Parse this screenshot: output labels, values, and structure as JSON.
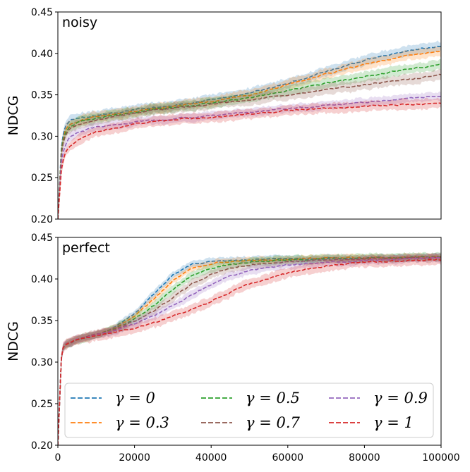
{
  "chart_data": [
    {
      "type": "line",
      "panel_label": "noisy",
      "ylabel": "NDCG",
      "xlim": [
        0,
        100000
      ],
      "ylim": [
        0.2,
        0.45
      ],
      "y_ticks": [
        "0.20",
        "0.25",
        "0.30",
        "0.35",
        "0.40",
        "0.45"
      ],
      "x_tick_labels_shown": false,
      "series": [
        {
          "name": "γ = 0",
          "color": "#1f77b4",
          "band": 0.006,
          "x": [
            0,
            1000,
            2000,
            3000,
            5000,
            10000,
            20000,
            30000,
            40000,
            50000,
            60000,
            70000,
            80000,
            90000,
            100000
          ],
          "y": [
            0.2,
            0.295,
            0.312,
            0.318,
            0.322,
            0.325,
            0.332,
            0.337,
            0.344,
            0.352,
            0.364,
            0.378,
            0.392,
            0.402,
            0.409
          ]
        },
        {
          "name": "γ = 0.3",
          "color": "#ff7f0e",
          "band": 0.006,
          "x": [
            0,
            1000,
            2000,
            3000,
            5000,
            10000,
            20000,
            30000,
            40000,
            50000,
            60000,
            70000,
            80000,
            90000,
            100000
          ],
          "y": [
            0.2,
            0.29,
            0.308,
            0.314,
            0.318,
            0.323,
            0.33,
            0.336,
            0.342,
            0.35,
            0.362,
            0.375,
            0.387,
            0.396,
            0.403
          ]
        },
        {
          "name": "γ = 0.5",
          "color": "#2ca02c",
          "band": 0.006,
          "x": [
            0,
            1000,
            2000,
            3000,
            5000,
            10000,
            20000,
            30000,
            40000,
            50000,
            60000,
            70000,
            80000,
            90000,
            100000
          ],
          "y": [
            0.2,
            0.288,
            0.305,
            0.311,
            0.316,
            0.322,
            0.329,
            0.335,
            0.34,
            0.346,
            0.355,
            0.364,
            0.372,
            0.38,
            0.387
          ]
        },
        {
          "name": "γ = 0.7",
          "color": "#8c564b",
          "band": 0.006,
          "x": [
            0,
            1000,
            2000,
            3000,
            5000,
            10000,
            20000,
            30000,
            40000,
            50000,
            60000,
            70000,
            80000,
            90000,
            100000
          ],
          "y": [
            0.2,
            0.285,
            0.302,
            0.309,
            0.314,
            0.32,
            0.328,
            0.334,
            0.339,
            0.344,
            0.35,
            0.356,
            0.362,
            0.368,
            0.374
          ]
        },
        {
          "name": "γ = 0.9",
          "color": "#9467bd",
          "band": 0.005,
          "x": [
            0,
            1000,
            2000,
            3000,
            5000,
            10000,
            20000,
            30000,
            40000,
            50000,
            60000,
            70000,
            80000,
            90000,
            100000
          ],
          "y": [
            0.2,
            0.275,
            0.29,
            0.298,
            0.304,
            0.311,
            0.317,
            0.321,
            0.325,
            0.329,
            0.333,
            0.337,
            0.341,
            0.345,
            0.349
          ]
        },
        {
          "name": "γ = 1",
          "color": "#d62728",
          "band": 0.006,
          "x": [
            0,
            1000,
            2000,
            3000,
            5000,
            10000,
            20000,
            30000,
            40000,
            50000,
            60000,
            70000,
            80000,
            90000,
            100000
          ],
          "y": [
            0.2,
            0.265,
            0.28,
            0.288,
            0.295,
            0.305,
            0.315,
            0.32,
            0.323,
            0.327,
            0.331,
            0.334,
            0.336,
            0.338,
            0.34
          ]
        }
      ]
    },
    {
      "type": "line",
      "panel_label": "perfect",
      "ylabel": "NDCG",
      "xlim": [
        0,
        100000
      ],
      "ylim": [
        0.2,
        0.45
      ],
      "y_ticks": [
        "0.20",
        "0.25",
        "0.30",
        "0.35",
        "0.40",
        "0.45"
      ],
      "x_ticks": [
        "0",
        "20000",
        "40000",
        "60000",
        "80000",
        "100000"
      ],
      "legend": {
        "placement": "lower-center",
        "columns": 3
      },
      "series": [
        {
          "name": "γ = 0",
          "color": "#1f77b4",
          "band": 0.004,
          "x": [
            0,
            1000,
            2000,
            5000,
            10000,
            15000,
            20000,
            25000,
            30000,
            35000,
            40000,
            45000,
            50000,
            60000,
            70000,
            80000,
            90000,
            100000
          ],
          "y": [
            0.2,
            0.315,
            0.321,
            0.327,
            0.333,
            0.342,
            0.358,
            0.382,
            0.405,
            0.418,
            0.421,
            0.422,
            0.423,
            0.424,
            0.425,
            0.425,
            0.426,
            0.427
          ]
        },
        {
          "name": "γ = 0.3",
          "color": "#ff7f0e",
          "band": 0.004,
          "x": [
            0,
            1000,
            2000,
            5000,
            10000,
            15000,
            20000,
            25000,
            30000,
            35000,
            40000,
            45000,
            50000,
            60000,
            70000,
            80000,
            90000,
            100000
          ],
          "y": [
            0.2,
            0.315,
            0.321,
            0.327,
            0.333,
            0.341,
            0.355,
            0.376,
            0.398,
            0.413,
            0.419,
            0.421,
            0.422,
            0.424,
            0.425,
            0.425,
            0.426,
            0.427
          ]
        },
        {
          "name": "γ = 0.5",
          "color": "#2ca02c",
          "band": 0.005,
          "x": [
            0,
            1000,
            2000,
            5000,
            10000,
            15000,
            20000,
            25000,
            30000,
            35000,
            40000,
            45000,
            50000,
            60000,
            70000,
            80000,
            90000,
            100000
          ],
          "y": [
            0.2,
            0.315,
            0.321,
            0.327,
            0.333,
            0.34,
            0.352,
            0.368,
            0.388,
            0.404,
            0.413,
            0.418,
            0.42,
            0.423,
            0.424,
            0.425,
            0.426,
            0.427
          ]
        },
        {
          "name": "γ = 0.7",
          "color": "#8c564b",
          "band": 0.005,
          "x": [
            0,
            1000,
            2000,
            5000,
            10000,
            15000,
            20000,
            25000,
            30000,
            35000,
            40000,
            45000,
            50000,
            60000,
            70000,
            80000,
            90000,
            100000
          ],
          "y": [
            0.2,
            0.315,
            0.321,
            0.327,
            0.333,
            0.339,
            0.349,
            0.362,
            0.378,
            0.394,
            0.406,
            0.413,
            0.417,
            0.421,
            0.423,
            0.424,
            0.425,
            0.426
          ]
        },
        {
          "name": "γ = 0.9",
          "color": "#9467bd",
          "band": 0.005,
          "x": [
            0,
            1000,
            2000,
            5000,
            10000,
            15000,
            20000,
            25000,
            30000,
            35000,
            40000,
            45000,
            50000,
            60000,
            70000,
            80000,
            90000,
            100000
          ],
          "y": [
            0.2,
            0.315,
            0.321,
            0.327,
            0.333,
            0.338,
            0.346,
            0.356,
            0.368,
            0.381,
            0.393,
            0.403,
            0.41,
            0.417,
            0.42,
            0.422,
            0.424,
            0.425
          ]
        },
        {
          "name": "γ = 1",
          "color": "#d62728",
          "band": 0.006,
          "x": [
            0,
            1000,
            2000,
            5000,
            10000,
            15000,
            20000,
            25000,
            30000,
            35000,
            40000,
            45000,
            50000,
            60000,
            70000,
            80000,
            90000,
            100000
          ],
          "y": [
            0.2,
            0.315,
            0.321,
            0.327,
            0.332,
            0.336,
            0.341,
            0.347,
            0.355,
            0.364,
            0.373,
            0.384,
            0.394,
            0.407,
            0.416,
            0.42,
            0.422,
            0.423
          ]
        }
      ]
    }
  ]
}
